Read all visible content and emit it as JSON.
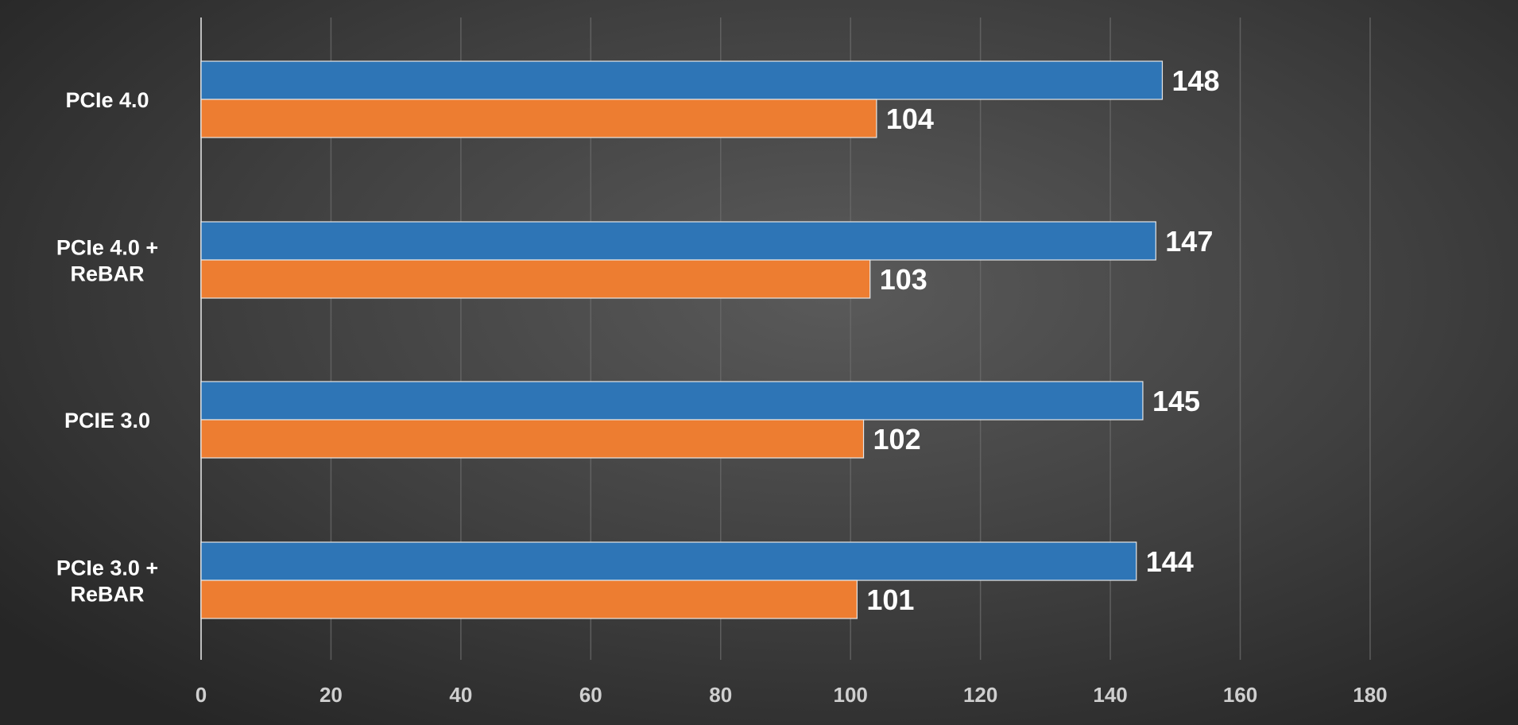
{
  "chart_data": {
    "type": "bar",
    "orientation": "horizontal",
    "categories": [
      "PCIe 4.0",
      "PCIe 4.0 +\nReBAR",
      "PCIE 3.0",
      "PCIe 3.0 +\nReBAR"
    ],
    "series": [
      {
        "values": [
          148,
          147,
          145,
          144
        ],
        "color": "#2e75b6"
      },
      {
        "values": [
          104,
          103,
          102,
          101
        ],
        "color": "#ed7d31"
      }
    ],
    "x_ticks": [
      0,
      20,
      40,
      60,
      80,
      100,
      120,
      140,
      160,
      180
    ],
    "xlim": [
      0,
      200
    ],
    "grid": true,
    "legend": "none",
    "title": "",
    "xlabel": "",
    "ylabel": ""
  }
}
